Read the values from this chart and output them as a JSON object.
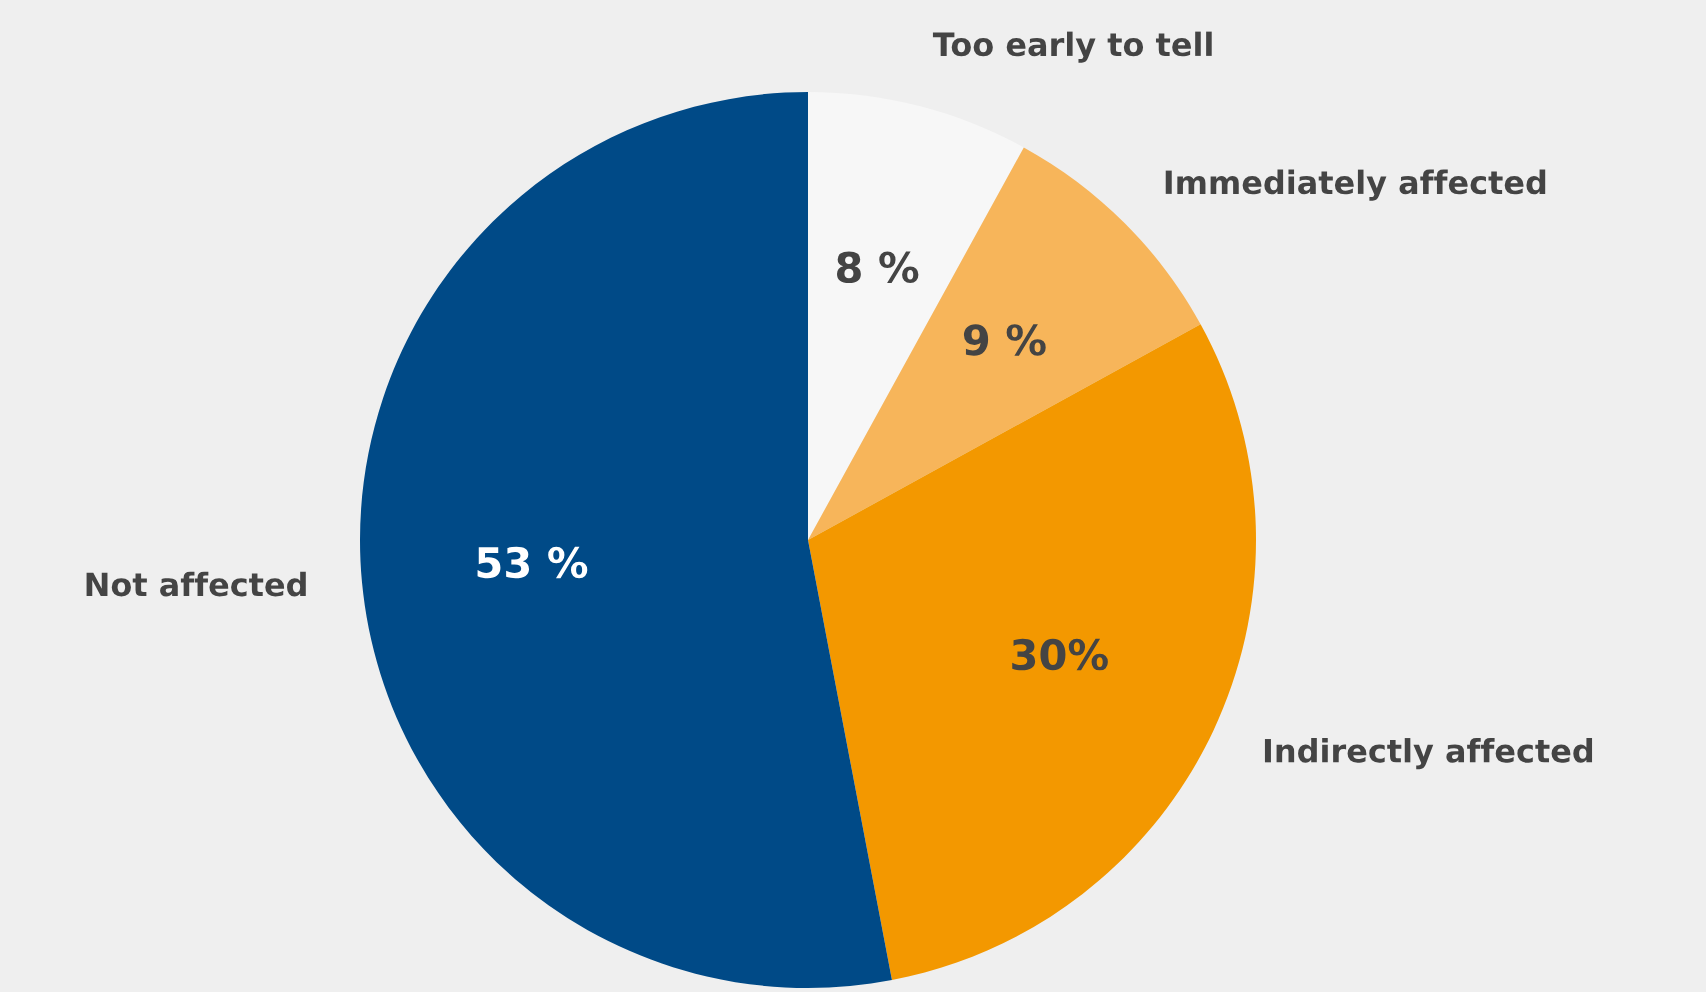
{
  "chart_data": {
    "type": "pie",
    "categories": [
      "Too early to tell",
      "Immediately affected",
      "Indirectly affected",
      "Not affected"
    ],
    "values": [
      8,
      9,
      30,
      53
    ],
    "colors": [
      "#f7f7f7",
      "#f7b55a",
      "#f39800",
      "#004a87"
    ],
    "value_labels": [
      "8 %",
      "9 %",
      "30%",
      "53 %"
    ],
    "legend": false
  }
}
